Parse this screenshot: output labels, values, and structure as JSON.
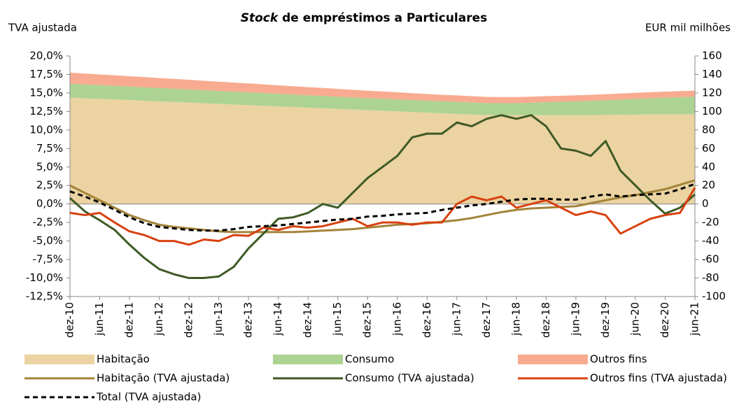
{
  "chart_data": {
    "type": "area-line",
    "title": {
      "emphasis": "Stock",
      "text": "de empréstimos a Particulares"
    },
    "y_label": "TVA ajustada",
    "y2_label": "EUR mil milhões",
    "categories": [
      "dez-10",
      null,
      "jun-11",
      null,
      "dez-11",
      null,
      "jun-12",
      null,
      "dez-12",
      null,
      "jun-13",
      null,
      "dez-13",
      null,
      "jun-14",
      null,
      "dez-14",
      null,
      "jun-15",
      null,
      "dez-15",
      null,
      "jun-16",
      null,
      "dez-16",
      null,
      "jun-17",
      null,
      "dez-17",
      null,
      "jun-18",
      null,
      "dez-18",
      null,
      "jun-19",
      null,
      "dez-19",
      null,
      "jun-20",
      null,
      "dez-20",
      null,
      "jun-21"
    ],
    "ylim": [
      -12.5,
      20
    ],
    "yticks": [
      {
        "value": -12.5,
        "label": "-12,5%"
      },
      {
        "value": -10,
        "label": "-10,0%"
      },
      {
        "value": -7.5,
        "label": "-7,5%"
      },
      {
        "value": -5,
        "label": "-5,0%"
      },
      {
        "value": -2.5,
        "label": "-2,5%"
      },
      {
        "value": 0,
        "label": "0,0%"
      },
      {
        "value": 2.5,
        "label": "2,5%"
      },
      {
        "value": 5,
        "label": "5,0%"
      },
      {
        "value": 7.5,
        "label": "7,5%"
      },
      {
        "value": 10,
        "label": "10,0%"
      },
      {
        "value": 12.5,
        "label": "12,5%"
      },
      {
        "value": 15,
        "label": "15,0%"
      },
      {
        "value": 17.5,
        "label": "17,5%"
      },
      {
        "value": 20,
        "label": "20,0%"
      }
    ],
    "y2lim": [
      -100,
      160
    ],
    "y2ticks": [
      -100,
      -80,
      -60,
      -40,
      -20,
      0,
      20,
      40,
      60,
      80,
      100,
      120,
      140,
      160
    ],
    "series": [
      {
        "name": "Habitação",
        "kind": "area",
        "axis": "y2",
        "color": "#ebd3a2",
        "values": [
          115,
          114.3,
          113.6,
          113,
          112.3,
          111.6,
          110.9,
          110.3,
          109.6,
          108.9,
          108.2,
          107.5,
          106.9,
          106.2,
          105.5,
          104.8,
          104.1,
          103.5,
          102.8,
          102.1,
          101.4,
          100.8,
          100.1,
          99.4,
          98.7,
          98,
          97.4,
          96.7,
          96,
          96,
          96,
          96,
          96,
          96,
          96,
          96,
          96.2,
          96.4,
          96.6,
          96.8,
          97,
          97,
          97
        ]
      },
      {
        "name": "Consumo",
        "kind": "area",
        "axis": "y2",
        "color": "#add393",
        "values": [
          15,
          14.9,
          14.8,
          14.7,
          14.6,
          14.5,
          14.4,
          14.3,
          14.2,
          14.1,
          14,
          13.9,
          13.8,
          13.7,
          13.6,
          13.5,
          13.4,
          13.3,
          13.2,
          13.1,
          13,
          13,
          13,
          13,
          13,
          13,
          13,
          13,
          13,
          13,
          13,
          13.5,
          14,
          14.5,
          15,
          15.5,
          16,
          16.5,
          17,
          17.5,
          18,
          18.5,
          19
        ]
      },
      {
        "name": "Outros fins",
        "kind": "area",
        "axis": "y2",
        "color": "#f8ab90",
        "values": [
          12,
          11.8,
          11.6,
          11.4,
          11.2,
          11,
          10.8,
          10.6,
          10.4,
          10.2,
          10,
          9.8,
          9.6,
          9.4,
          9.2,
          9,
          8.8,
          8.6,
          8.4,
          8.2,
          8,
          7.8,
          7.6,
          7.4,
          7.2,
          7,
          7,
          6.8,
          6.8,
          6.6,
          6.6,
          6.5,
          6.5,
          6.5,
          6.5,
          6.5,
          6.5,
          6.5,
          6.5,
          6.5,
          6.5,
          6.5,
          6.5
        ]
      },
      {
        "name": "Habitação (TVA ajustada)",
        "kind": "line",
        "color": "#a38339",
        "values": [
          2.5,
          1.5,
          0.5,
          -0.5,
          -1.5,
          -2.2,
          -2.8,
          -3.1,
          -3.3,
          -3.5,
          -3.7,
          -3.8,
          -3.8,
          -3.8,
          -3.8,
          -3.8,
          -3.7,
          -3.6,
          -3.5,
          -3.4,
          -3.2,
          -3.0,
          -2.8,
          -2.7,
          -2.6,
          -2.4,
          -2.2,
          -1.9,
          -1.5,
          -1.1,
          -0.8,
          -0.6,
          -0.5,
          -0.4,
          -0.3,
          0.1,
          0.5,
          0.9,
          1.2,
          1.6,
          2.0,
          2.6,
          3.2
        ]
      },
      {
        "name": "Consumo (TVA ajustada)",
        "kind": "line",
        "color": "#3e5a25",
        "values": [
          0.8,
          -1,
          -2.2,
          -3.5,
          -5.5,
          -7.3,
          -8.8,
          -9.5,
          -10,
          -10,
          -9.8,
          -8.5,
          -6,
          -4,
          -2,
          -1.8,
          -1.2,
          0,
          -0.5,
          1.5,
          3.5,
          5,
          6.5,
          9,
          9.5,
          9.5,
          11,
          10.5,
          11.5,
          12,
          11.5,
          12,
          10.5,
          7.5,
          7.2,
          6.5,
          8.5,
          4.5,
          2.5,
          0.5,
          -1.3,
          -0.5,
          1.3
        ]
      },
      {
        "name": "Outros fins (TVA ajustada)",
        "kind": "line",
        "color": "#d8410f",
        "values": [
          -1.2,
          -1.5,
          -1.2,
          -2.5,
          -3.7,
          -4.2,
          -5,
          -5,
          -5.5,
          -4.8,
          -5,
          -4.2,
          -4.3,
          -3.2,
          -3.5,
          -3,
          -3.2,
          -3,
          -2.5,
          -2,
          -3,
          -2.5,
          -2.5,
          -2.8,
          -2.5,
          -2.5,
          0,
          1,
          0.5,
          1,
          -0.5,
          0,
          0.5,
          -0.5,
          -1.5,
          -1,
          -1.5,
          -4,
          -3,
          -2,
          -1.5,
          -1.2,
          2.2
        ]
      },
      {
        "name": "Total (TVA ajustada)",
        "kind": "line",
        "dashed": true,
        "color": "#000000",
        "values": [
          1.7,
          1,
          0.2,
          -0.8,
          -1.8,
          -2.6,
          -3.1,
          -3.3,
          -3.5,
          -3.6,
          -3.6,
          -3.4,
          -3.1,
          -3,
          -2.9,
          -2.7,
          -2.5,
          -2.3,
          -2.1,
          -2,
          -1.7,
          -1.6,
          -1.4,
          -1.3,
          -1.2,
          -0.8,
          -0.5,
          -0.2,
          0,
          0.3,
          0.6,
          0.7,
          0.7,
          0.6,
          0.6,
          1.0,
          1.3,
          1.0,
          1.2,
          1.3,
          1.4,
          2.0,
          2.7
        ]
      }
    ]
  }
}
